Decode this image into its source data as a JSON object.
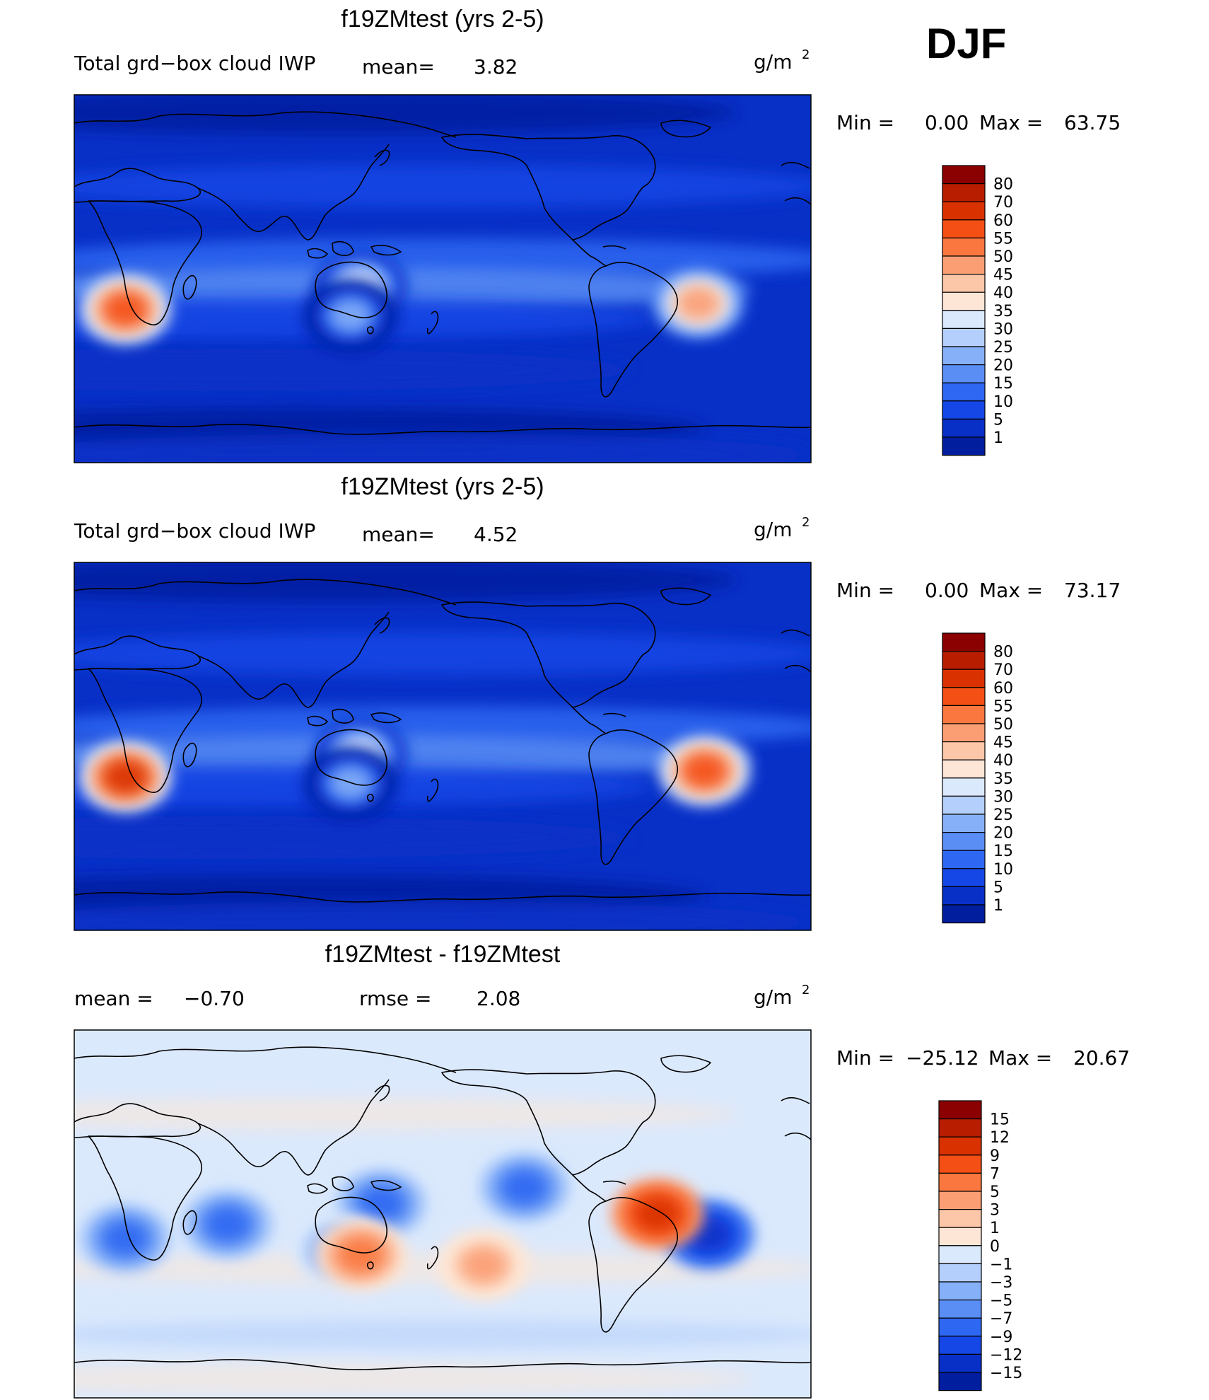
{
  "season": "DJF",
  "panels": [
    {
      "title": "f19ZMtest (yrs 2-5)",
      "label_left": "Total grd−box cloud IWP",
      "stat1_label": "mean=",
      "stat1_value": "3.82",
      "stat2_label": "",
      "stat2_value": "",
      "units": "g/m",
      "units_sup": "2",
      "min_label": "Min  =",
      "min_value": "0.00",
      "max_label": "Max  =",
      "max_value": "63.75",
      "palette": "main",
      "colorbar": {
        "labels": [
          "80",
          "70",
          "60",
          "55",
          "50",
          "45",
          "40",
          "35",
          "30",
          "25",
          "20",
          "15",
          "10",
          "5",
          "1"
        ],
        "colors": [
          "#8b0000",
          "#b81d00",
          "#d93200",
          "#f44f15",
          "#fa7840",
          "#fb9e74",
          "#fcc6a8",
          "#fde6d6",
          "#dbe9fc",
          "#b4cffb",
          "#86b0f8",
          "#5a8ef5",
          "#2e68f2",
          "#1547e6",
          "#0830c7",
          "#001e9e"
        ]
      },
      "regions": [
        {
          "name": "southern-africa",
          "lon": 25,
          "lat": -15,
          "level": 0.8
        },
        {
          "name": "south-america",
          "lon": -55,
          "lat": -12,
          "level": 0.65
        },
        {
          "name": "maritime-continent",
          "lon": 140,
          "lat": -4,
          "level": 0.45
        },
        {
          "name": "northern-australia",
          "lon": 135,
          "lat": -18,
          "level": 0.3
        }
      ]
    },
    {
      "title": "f19ZMtest (yrs 2-5)",
      "label_left": "Total grd−box cloud IWP",
      "stat1_label": "mean=",
      "stat1_value": "4.52",
      "stat2_label": "",
      "stat2_value": "",
      "units": "g/m",
      "units_sup": "2",
      "min_label": "Min  =",
      "min_value": "0.00",
      "max_label": "Max  =",
      "max_value": "73.17",
      "palette": "main",
      "colorbar": {
        "labels": [
          "80",
          "70",
          "60",
          "55",
          "50",
          "45",
          "40",
          "35",
          "30",
          "25",
          "20",
          "15",
          "10",
          "5",
          "1"
        ],
        "colors": [
          "#8b0000",
          "#b81d00",
          "#d93200",
          "#f44f15",
          "#fa7840",
          "#fb9e74",
          "#fcc6a8",
          "#fde6d6",
          "#dbe9fc",
          "#b4cffb",
          "#86b0f8",
          "#5a8ef5",
          "#2e68f2",
          "#1547e6",
          "#0830c7",
          "#001e9e"
        ]
      },
      "regions": [
        {
          "name": "southern-africa",
          "lon": 25,
          "lat": -15,
          "level": 0.85
        },
        {
          "name": "south-america",
          "lon": -52,
          "lat": -12,
          "level": 0.8
        },
        {
          "name": "maritime-continent",
          "lon": 140,
          "lat": -4,
          "level": 0.45
        },
        {
          "name": "northern-australia",
          "lon": 135,
          "lat": -18,
          "level": 0.3
        }
      ]
    },
    {
      "title": "f19ZMtest - f19ZMtest",
      "label_left": "mean  =",
      "stat1_label": "",
      "stat1_value": "−0.70",
      "stat2_label": "rmse  =",
      "stat2_value": "2.08",
      "units": "g/m",
      "units_sup": "2",
      "min_label": "Min  =",
      "min_value": "−25.12",
      "max_label": "Max  =",
      "max_value": "20.67",
      "palette": "diff",
      "colorbar": {
        "labels": [
          "15",
          "12",
          "9",
          "7",
          "5",
          "3",
          "1",
          "0",
          "−1",
          "−3",
          "−5",
          "−7",
          "−9",
          "−12",
          "−15"
        ],
        "colors": [
          "#8b0000",
          "#b81d00",
          "#d93200",
          "#f44f15",
          "#fa7840",
          "#fb9e74",
          "#fcc6a8",
          "#fde6d6",
          "#dbe9fc",
          "#b4cffb",
          "#86b0f8",
          "#5a8ef5",
          "#2e68f2",
          "#1547e6",
          "#0830c7",
          "#001e9e"
        ]
      },
      "regions": [
        {
          "name": "brazil",
          "lon": -50,
          "lat": -10,
          "level": -0.9
        },
        {
          "name": "southern-africa",
          "lon": 25,
          "lat": -12,
          "level": -0.6
        },
        {
          "name": "western-pacific",
          "lon": 150,
          "lat": 5,
          "level": -0.5
        },
        {
          "name": "north-pacific",
          "lon": -140,
          "lat": 13,
          "level": -0.55
        },
        {
          "name": "northern-australia",
          "lon": 130,
          "lat": -18,
          "level": -0.45
        },
        {
          "name": "indian-ocean",
          "lon": 75,
          "lat": -5,
          "level": -0.5
        },
        {
          "name": "andes",
          "lon": -75,
          "lat": 0,
          "level": 0.7
        },
        {
          "name": "australia-east",
          "lon": 140,
          "lat": -20,
          "level": 0.4
        },
        {
          "name": "south-pacific",
          "lon": -160,
          "lat": -25,
          "level": 0.35
        }
      ]
    }
  ]
}
